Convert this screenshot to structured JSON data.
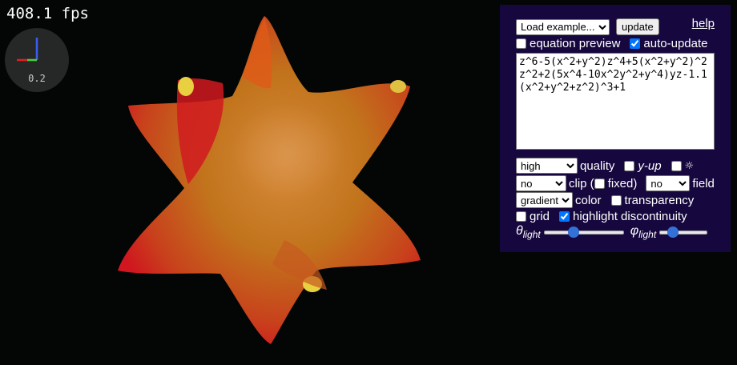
{
  "fps": "408.1 fps",
  "axes_widget": {
    "scale": "0.2"
  },
  "panel": {
    "example_select": "Load example...",
    "update_label": "update",
    "help_label": "help",
    "equation_preview_label": "equation preview",
    "equation_preview_checked": false,
    "auto_update_label": "auto-update",
    "auto_update_checked": true,
    "equation": "z^6-5(x^2+y^2)z^4+5(x^2+y^2)^2z^2+2(5x^4-10x^2y^2+y^4)yz-1.1(x^2+y^2+z^2)^3+1",
    "quality_value": "high",
    "quality_label": "quality",
    "yup_label": "y-up",
    "yup_checked": false,
    "light_symbol": "☼",
    "light_checked": false,
    "clip_value": "no",
    "clip_label": "clip (",
    "fixed_label": "fixed)",
    "fixed_checked": false,
    "field_value": "no",
    "field_label": "field",
    "color_value": "gradient",
    "color_label": "color",
    "transparency_label": "transparency",
    "transparency_checked": false,
    "grid_label": "grid",
    "grid_checked": false,
    "highlight_label": "highlight discontinuity",
    "highlight_checked": true,
    "theta_symbol": "θ",
    "phi_symbol": "φ",
    "light_sub": "light",
    "theta_value": 0.35,
    "phi_value": 0.22
  },
  "colors": {
    "accent": "#3471d6",
    "panel_bg": "#16083e",
    "surface_main": "#c86a1c",
    "surface_edge": "#d01a22"
  }
}
